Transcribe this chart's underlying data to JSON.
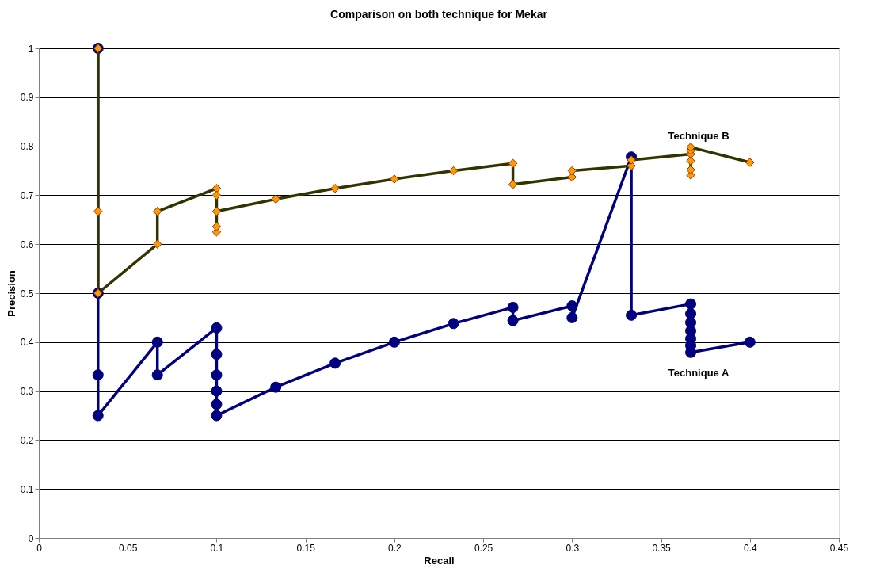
{
  "chart_data": {
    "type": "line",
    "title": "Comparison on both technique for Mekar",
    "xlabel": "Recall",
    "ylabel": "Precision",
    "xlim": [
      0,
      0.45
    ],
    "xticks": [
      0,
      0.05,
      0.1,
      0.15,
      0.2,
      0.25,
      0.3,
      0.35,
      0.4,
      0.45
    ],
    "ylim": [
      0,
      1
    ],
    "yticks": [
      0,
      0.1,
      0.2,
      0.3,
      0.4,
      0.5,
      0.6,
      0.7,
      0.8,
      0.9,
      1
    ],
    "grid": "y",
    "line_style": "solid",
    "series": [
      {
        "name": "Technique A",
        "color": "#000080",
        "marker": "circle",
        "x": [
          0.0333,
          0.0333,
          0.0333,
          0.0333,
          0.0667,
          0.0667,
          0.1,
          0.1,
          0.1,
          0.1,
          0.1,
          0.1,
          0.1333,
          0.1667,
          0.2,
          0.2333,
          0.2667,
          0.2667,
          0.3,
          0.3,
          0.3333,
          0.3333,
          0.3667,
          0.3667,
          0.3667,
          0.3667,
          0.3667,
          0.3667,
          0.3667,
          0.4
        ],
        "values": [
          1.0,
          0.5,
          0.333,
          0.25,
          0.4,
          0.333,
          0.429,
          0.375,
          0.333,
          0.3,
          0.273,
          0.25,
          0.308,
          0.357,
          0.4,
          0.438,
          0.471,
          0.444,
          0.474,
          0.45,
          0.778,
          0.455,
          0.478,
          0.458,
          0.44,
          0.423,
          0.407,
          0.393,
          0.379,
          0.4
        ]
      },
      {
        "name": "Technique B",
        "color": "#333300",
        "marker": "diamond",
        "x": [
          0.0333,
          0.0333,
          0.0333,
          0.0667,
          0.0667,
          0.1,
          0.1,
          0.1,
          0.1,
          0.1,
          0.1333,
          0.1667,
          0.2,
          0.2333,
          0.2667,
          0.2667,
          0.3,
          0.3,
          0.3333,
          0.3333,
          0.3667,
          0.3667,
          0.3667,
          0.3667,
          0.3667,
          0.3667,
          0.4
        ],
        "values": [
          1.0,
          0.667,
          0.5,
          0.6,
          0.667,
          0.714,
          0.7,
          0.625,
          0.636,
          0.667,
          0.692,
          0.714,
          0.733,
          0.75,
          0.765,
          0.722,
          0.737,
          0.75,
          0.76,
          0.772,
          0.784,
          0.741,
          0.752,
          0.77,
          0.791,
          0.798,
          0.767
        ]
      }
    ]
  }
}
